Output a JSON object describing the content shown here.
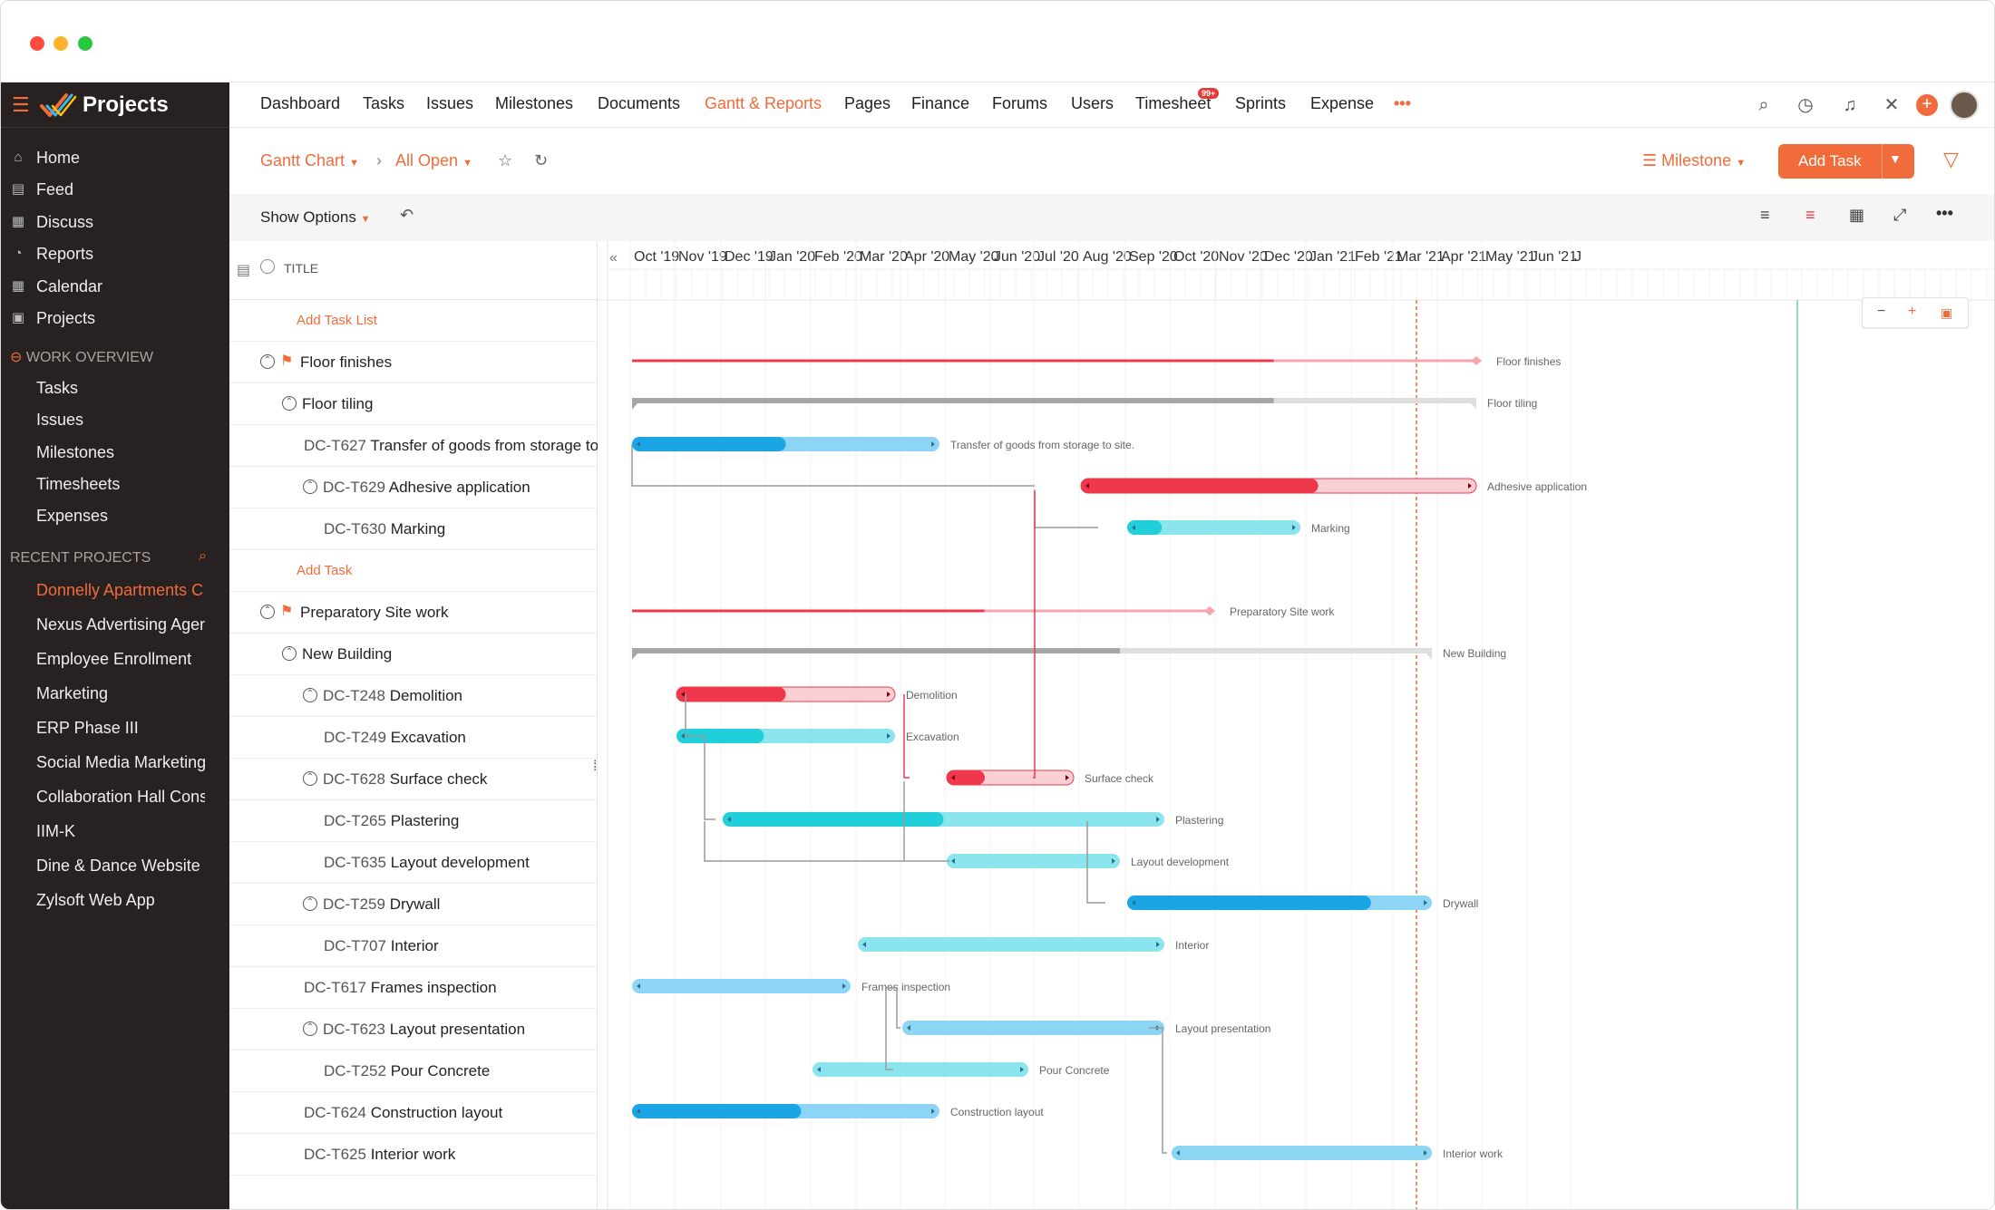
{
  "app": {
    "name": "Projects"
  },
  "colors": {
    "accent": "#f26b3a",
    "milestone": "#f0384c",
    "group": "#a6a6a6",
    "bar_dark": "#1aa6e4",
    "bar_light": "#7dd6f4",
    "teal_dark": "#1fcfd9",
    "teal_light": "#86e5ee"
  },
  "sidebar": {
    "items": [
      {
        "label": "Home",
        "icon": "home-icon"
      },
      {
        "label": "Feed",
        "icon": "feed-icon"
      },
      {
        "label": "Discuss",
        "icon": "discuss-icon"
      },
      {
        "label": "Reports",
        "icon": "reports-icon"
      },
      {
        "label": "Calendar",
        "icon": "calendar-icon"
      },
      {
        "label": "Projects",
        "icon": "projects-icon"
      }
    ],
    "work_overview": {
      "title": "WORK OVERVIEW",
      "items": [
        "Tasks",
        "Issues",
        "Milestones",
        "Timesheets",
        "Expenses"
      ]
    },
    "recent": {
      "title": "RECENT PROJECTS",
      "items": [
        "Donnelly Apartments C",
        "Nexus Advertising Agen",
        "Employee Enrollment",
        "Marketing",
        "ERP Phase III",
        "Social Media Marketing",
        "Collaboration Hall Cons",
        "IIM-K",
        "Dine & Dance Website",
        "Zylsoft Web App"
      ]
    }
  },
  "topnav": {
    "tabs": [
      "Dashboard",
      "Tasks",
      "Issues",
      "Milestones",
      "Documents",
      "Gantt & Reports",
      "Pages",
      "Finance",
      "Forums",
      "Users",
      "Timesheet",
      "Sprints",
      "Expense"
    ],
    "active": "Gantt & Reports",
    "timesheet_badge": "99+",
    "more": "•••"
  },
  "toolbar": {
    "view": "Gantt Chart",
    "filter": "All Open",
    "group_by": "Milestone",
    "add_task": "Add Task"
  },
  "options": {
    "show_options": "Show Options"
  },
  "tasklist": {
    "header": "TITLE",
    "rows": [
      {
        "type": "link",
        "title": "Add Task List"
      },
      {
        "type": "milestone",
        "title": "Floor finishes"
      },
      {
        "type": "group",
        "title": "Floor tiling"
      },
      {
        "type": "task",
        "code": "DC-T627",
        "title": "Transfer of goods from storage to s"
      },
      {
        "type": "task-parent",
        "code": "DC-T629",
        "title": "Adhesive application"
      },
      {
        "type": "subtask",
        "code": "DC-T630",
        "title": "Marking"
      },
      {
        "type": "link",
        "title": "Add Task"
      },
      {
        "type": "milestone",
        "title": "Preparatory Site work"
      },
      {
        "type": "group",
        "title": "New Building"
      },
      {
        "type": "task-parent",
        "code": "DC-T248",
        "title": "Demolition"
      },
      {
        "type": "subtask",
        "code": "DC-T249",
        "title": "Excavation"
      },
      {
        "type": "task-parent",
        "code": "DC-T628",
        "title": "Surface check"
      },
      {
        "type": "subtask",
        "code": "DC-T265",
        "title": "Plastering"
      },
      {
        "type": "subtask",
        "code": "DC-T635",
        "title": "Layout development"
      },
      {
        "type": "task-parent",
        "code": "DC-T259",
        "title": "Drywall"
      },
      {
        "type": "subtask",
        "code": "DC-T707",
        "title": "Interior"
      },
      {
        "type": "task",
        "code": "DC-T617",
        "title": "Frames inspection"
      },
      {
        "type": "task-parent",
        "code": "DC-T623",
        "title": "Layout presentation"
      },
      {
        "type": "subtask",
        "code": "DC-T252",
        "title": "Pour Concrete"
      },
      {
        "type": "task",
        "code": "DC-T624",
        "title": "Construction layout"
      },
      {
        "type": "task",
        "code": "DC-T625",
        "title": "Interior work"
      }
    ]
  },
  "gantt": {
    "months": [
      "Oct '19",
      "Nov '19",
      "Dec '19",
      "Jan '20",
      "Feb '20",
      "Mar '20",
      "Apr '20",
      "May '20",
      "Jun '20",
      "Jul '20",
      "Aug '20",
      "Sep '20",
      "Oct '20",
      "Nov '20",
      "Dec '20",
      "Jan '21",
      "Feb '21",
      "Mar '21",
      "Apr '21",
      "May '21",
      "Jun '21",
      "J"
    ],
    "bars": [
      {
        "label": "Floor finishes",
        "kind": "milestone",
        "start": "Oct '19",
        "end": "Apr '21",
        "progress": 0.76
      },
      {
        "label": "Floor tiling",
        "kind": "group",
        "start": "Oct '19",
        "end": "Apr '21",
        "progress": 0.76
      },
      {
        "label": "Transfer of goods from storage to site.",
        "kind": "blue",
        "start": "Oct '19",
        "end": "Apr '20",
        "progress": 0.5
      },
      {
        "label": "Adhesive application",
        "kind": "red",
        "start": "Aug '20",
        "end": "Apr '21",
        "progress": 0.6
      },
      {
        "label": "Marking",
        "kind": "teal",
        "start": "Sep '20",
        "end": "Dec '20",
        "progress": 0.2
      },
      {
        "label": "Preparatory Site work",
        "kind": "milestone",
        "start": "Oct '19",
        "end": "Oct '20",
        "progress": 0.61
      },
      {
        "label": "New Building",
        "kind": "group",
        "start": "Oct '19",
        "end": "Mar '21",
        "progress": 0.61
      },
      {
        "label": "Demolition",
        "kind": "red",
        "start": "Nov '19",
        "end": "Mar '20",
        "progress": 0.5
      },
      {
        "label": "Excavation",
        "kind": "teal",
        "start": "Nov '19",
        "end": "Mar '20",
        "progress": 0.4
      },
      {
        "label": "Surface check",
        "kind": "red",
        "start": "May '20",
        "end": "Jul '20",
        "progress": 0.3
      },
      {
        "label": "Plastering",
        "kind": "teal",
        "start": "Dec '19",
        "end": "Sep '20",
        "progress": 0.5
      },
      {
        "label": "Layout development",
        "kind": "teal-light",
        "start": "May '20",
        "end": "Aug '20",
        "progress": 0
      },
      {
        "label": "Drywall",
        "kind": "blue",
        "start": "Sep '20",
        "end": "Mar '21",
        "progress": 0.8
      },
      {
        "label": "Interior",
        "kind": "teal-light",
        "start": "Mar '20",
        "end": "Sep '20",
        "progress": 0
      },
      {
        "label": "Frames inspection",
        "kind": "blue-light",
        "start": "Oct '19",
        "end": "Feb '20",
        "progress": 0
      },
      {
        "label": "Layout presentation",
        "kind": "blue-light",
        "start": "Apr '20",
        "end": "Sep '20",
        "progress": 0
      },
      {
        "label": "Pour Concrete",
        "kind": "teal-light",
        "start": "Feb '20",
        "end": "Jun '20",
        "progress": 0
      },
      {
        "label": "Construction layout",
        "kind": "blue",
        "start": "Oct '19",
        "end": "Apr '20",
        "progress": 0.55
      },
      {
        "label": "Interior work",
        "kind": "blue-light",
        "start": "Oct '20",
        "end": "Mar '21",
        "progress": 0
      }
    ],
    "zoom": {
      "minus": "−",
      "plus": "+"
    }
  }
}
